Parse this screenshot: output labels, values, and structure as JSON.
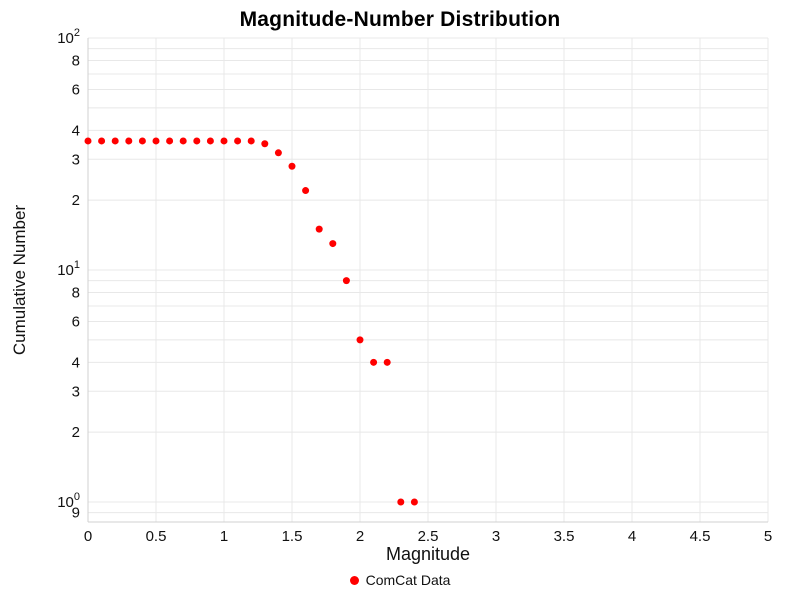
{
  "chart_data": {
    "type": "scatter",
    "title": "Magnitude-Number Distribution",
    "xlabel": "Magnitude",
    "ylabel": "Cumulative Number",
    "y_scale": "log",
    "grid": true,
    "legend_position": "bottom-center",
    "xlim": [
      0,
      5
    ],
    "ylim": [
      0.82,
      100
    ],
    "x_ticks": [
      {
        "v": 0,
        "t": "0"
      },
      {
        "v": 0.5,
        "t": "0.5"
      },
      {
        "v": 1,
        "t": "1"
      },
      {
        "v": 1.5,
        "t": "1.5"
      },
      {
        "v": 2,
        "t": "2"
      },
      {
        "v": 2.5,
        "t": "2.5"
      },
      {
        "v": 3,
        "t": "3"
      },
      {
        "v": 3.5,
        "t": "3.5"
      },
      {
        "v": 4,
        "t": "4"
      },
      {
        "v": 4.5,
        "t": "4.5"
      },
      {
        "v": 5,
        "t": "5"
      }
    ],
    "y_ticks": [
      {
        "v": 100,
        "t": "10",
        "e": "2"
      },
      {
        "v": 80,
        "t": "8"
      },
      {
        "v": 60,
        "t": "6"
      },
      {
        "v": 40,
        "t": "4"
      },
      {
        "v": 30,
        "t": "3"
      },
      {
        "v": 20,
        "t": "2"
      },
      {
        "v": 10,
        "t": "10",
        "e": "1"
      },
      {
        "v": 8,
        "t": "8"
      },
      {
        "v": 6,
        "t": "6"
      },
      {
        "v": 4,
        "t": "4"
      },
      {
        "v": 3,
        "t": "3"
      },
      {
        "v": 2,
        "t": "2"
      },
      {
        "v": 1,
        "t": "10",
        "e": "0"
      },
      {
        "v": 0.9,
        "t": "9"
      }
    ],
    "colors": {
      "marker": "#ff0000",
      "grid": "#e8e8e8",
      "axis": "#d0d0d0",
      "text": "#111111"
    },
    "series": [
      {
        "name": "ComCat Data",
        "marker": "circle",
        "color": "#ff0000",
        "x": [
          0,
          0.1,
          0.2,
          0.3,
          0.4,
          0.5,
          0.6,
          0.7,
          0.8,
          0.9,
          1,
          1.1,
          1.2,
          1.3,
          1.4,
          1.5,
          1.6,
          1.7,
          1.8,
          1.9,
          2,
          2.1,
          2.2,
          2.3,
          2.4
        ],
        "y": [
          36,
          36,
          36,
          36,
          36,
          36,
          36,
          36,
          36,
          36,
          36,
          36,
          36,
          35,
          32,
          28,
          22,
          15,
          13,
          9,
          5,
          4,
          4,
          1,
          1
        ]
      }
    ]
  }
}
